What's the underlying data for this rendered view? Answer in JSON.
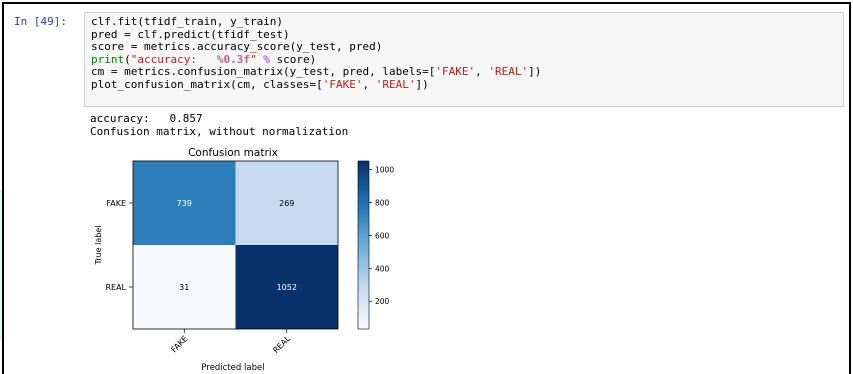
{
  "prompt": "In [49]:",
  "code": {
    "line1": "clf.fit(tfidf_train, y_train)",
    "line2": "pred = clf.predict(tfidf_test)",
    "line3": "score = metrics.accuracy_score(y_test, pred)",
    "line4_fn": "print",
    "line4_open": "(",
    "line4_str_a": "\"accuracy:   ",
    "line4_fmt": "%0.3f",
    "line4_str_b": "\"",
    "line4_op": " % ",
    "line4_rest": "score)",
    "line5_a": "cm = metrics.confusion_matrix(y_test, pred, labels=[",
    "line5_s1": "'FAKE'",
    "line5_sep": ", ",
    "line5_s2": "'REAL'",
    "line5_end": "])",
    "line6_a": "plot_confusion_matrix(cm, classes=[",
    "line6_s1": "'FAKE'",
    "line6_sep": ", ",
    "line6_s2": "'REAL'",
    "line6_end": "])"
  },
  "output": {
    "accuracy_line": "accuracy:   0.857",
    "cm_line": "Confusion matrix, without normalization"
  },
  "chart_data": {
    "type": "heatmap",
    "title": "Confusion matrix",
    "xlabel": "Predicted label",
    "ylabel": "True label",
    "x_categories": [
      "FAKE",
      "REAL"
    ],
    "y_categories": [
      "FAKE",
      "REAL"
    ],
    "values": [
      [
        739,
        269
      ],
      [
        31,
        1052
      ]
    ],
    "colormap": "Blues",
    "colorbar_ticks": [
      200,
      400,
      600,
      800,
      1000
    ],
    "colorbar_ticks_text": [
      "200",
      "400",
      "600",
      "800",
      "1000"
    ],
    "colorbar_range": [
      31,
      1052
    ],
    "cell_colors": [
      [
        "#2e7ebc",
        "#c6dbef"
      ],
      [
        "#f7fbff",
        "#08306b"
      ]
    ],
    "text_colors": [
      [
        "#ffffff",
        "#000000"
      ],
      [
        "#000000",
        "#ffffff"
      ]
    ]
  }
}
